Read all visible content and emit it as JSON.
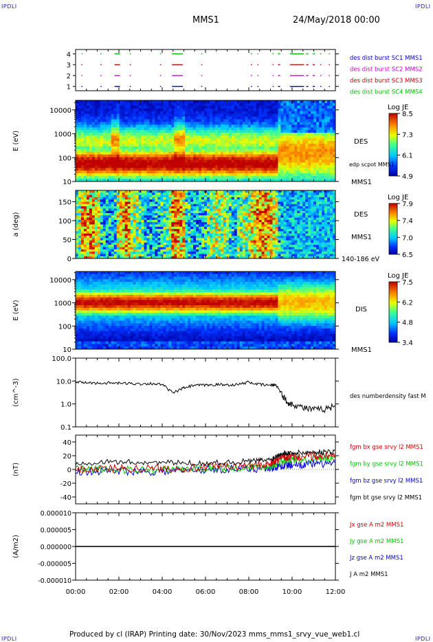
{
  "header": {
    "corner_tl": "IPDLI",
    "corner_tr": "IPDLI",
    "spacecraft": "MMS1",
    "datetime": "24/May/2018 00:00"
  },
  "footer": {
    "text": "Produced by cl (IRAP)   Printing date: 30/Nov/2023   mms_mms1_srvy_vue_web1.cl",
    "corner_bl": "IPDLI",
    "corner_br": "IPDLI"
  },
  "time_axis": {
    "ticks": [
      "00:00",
      "02:00",
      "04:00",
      "06:00",
      "08:00",
      "10:00",
      "12:00"
    ]
  },
  "chart_data": [
    {
      "type": "scatter",
      "panel": "burst",
      "yticks": [
        "1",
        "2",
        "3",
        "4"
      ],
      "ylim": [
        0.6,
        4.4
      ],
      "legend": [
        {
          "label": "des dist burst SC1 MMS1",
          "color": "#0000d0"
        },
        {
          "label": "des dist burst SC2 MMS2",
          "color": "#d000d0"
        },
        {
          "label": "des dist burst SC3 MMS3",
          "color": "#d00000"
        },
        {
          "label": "des dist burst SC4 MMS4",
          "color": "#00c000"
        }
      ],
      "intervals_hours": [
        [
          0.27,
          0.31
        ],
        [
          1.15,
          1.2
        ],
        [
          1.8,
          2.05
        ],
        [
          2.5,
          2.55
        ],
        [
          3.9,
          3.95
        ],
        [
          4.45,
          4.95
        ],
        [
          5.8,
          5.85
        ],
        [
          8.1,
          8.15
        ],
        [
          8.4,
          8.45
        ],
        [
          9.1,
          9.15
        ],
        [
          9.35,
          9.45
        ],
        [
          9.9,
          10.55
        ],
        [
          10.65,
          10.75
        ],
        [
          10.95,
          11.05
        ],
        [
          11.3,
          11.35
        ],
        [
          11.7,
          11.75
        ]
      ]
    },
    {
      "type": "heatmap",
      "panel": "des-energy",
      "ylabel": "E (eV)",
      "yticks": [
        "10",
        "100",
        "1000",
        "10000"
      ],
      "ylim_log10": [
        1,
        4.4
      ],
      "instrument": "DES",
      "overlay_label": "edp scpot MMS1",
      "bottom_label": "MMS1",
      "colorbar": {
        "title": "Log JE",
        "ticks": [
          "8.5",
          "7.3",
          "6.1",
          "4.9"
        ],
        "range": [
          4.9,
          8.5
        ]
      }
    },
    {
      "type": "heatmap",
      "panel": "des-pitch",
      "ylabel": "a (deg)",
      "yticks": [
        "0",
        "50",
        "100",
        "150"
      ],
      "ylim": [
        0,
        180
      ],
      "instrument": "DES",
      "spacecraft_label": "MMS1",
      "energy_range": "140-186 eV",
      "colorbar": {
        "title": "Log JE",
        "ticks": [
          "7.9",
          "7.4",
          "7.0",
          "6.5"
        ],
        "range": [
          6.5,
          7.9
        ]
      }
    },
    {
      "type": "heatmap",
      "panel": "dis-energy",
      "ylabel": "E (eV)",
      "yticks": [
        "10",
        "100",
        "1000",
        "10000"
      ],
      "ylim_log10": [
        1,
        4.35
      ],
      "instrument": "DIS",
      "bottom_label": "MMS1",
      "colorbar": {
        "title": "Log JE",
        "ticks": [
          "7.5",
          "6.2",
          "4.8",
          "3.4"
        ],
        "range": [
          3.4,
          7.5
        ]
      }
    },
    {
      "type": "line",
      "panel": "density",
      "ylabel": "(cm^-3)",
      "yticks": [
        "0.1",
        "1.0",
        "10.0",
        "100.0"
      ],
      "ylim_log10": [
        -1,
        2
      ],
      "series": [
        {
          "name": "des numberdensity fast M",
          "color": "#000000"
        }
      ],
      "x_hours": [
        0,
        0.5,
        1,
        1.5,
        2,
        2.5,
        3,
        3.5,
        4,
        4.5,
        5,
        5.5,
        6,
        6.5,
        7,
        7.5,
        8,
        8.5,
        9,
        9.25,
        9.5,
        9.75,
        10,
        10.5,
        11,
        11.5,
        12
      ],
      "values": [
        9,
        8.5,
        8,
        8.2,
        8,
        7.8,
        7.5,
        7.8,
        7,
        3,
        5,
        6.5,
        6.5,
        7,
        6.8,
        7,
        9,
        7,
        6.5,
        7,
        3,
        1.2,
        1.0,
        0.7,
        0.55,
        0.6,
        0.8
      ]
    },
    {
      "type": "line",
      "panel": "fgm",
      "ylabel": "(nT)",
      "yticks": [
        "-40",
        "-20",
        "0",
        "20",
        "40"
      ],
      "ylim": [
        -50,
        50
      ],
      "series": [
        {
          "name": "fgm bx gse srvy l2 MMS1",
          "color": "#d00000",
          "x_hours": [
            0,
            2,
            4,
            6,
            8,
            9,
            9.5,
            10,
            11,
            12
          ],
          "values": [
            0,
            2,
            1,
            3,
            5,
            8,
            18,
            18,
            19,
            20
          ]
        },
        {
          "name": "fgm by gse srvy l2 MMS1",
          "color": "#00c000",
          "x_hours": [
            0,
            2,
            4,
            6,
            8,
            9,
            9.5,
            10,
            11,
            12
          ],
          "values": [
            0,
            0,
            -1,
            2,
            3,
            5,
            12,
            14,
            15,
            16
          ]
        },
        {
          "name": "fgm bz gse srvy l2 MMS1",
          "color": "#0000d0",
          "x_hours": [
            0,
            2,
            4,
            6,
            8,
            9,
            9.5,
            10,
            11,
            12
          ],
          "values": [
            -3,
            -2,
            -3,
            0,
            1,
            2,
            5,
            7,
            8,
            9
          ]
        },
        {
          "name": "fgm bt gse srvy l2 MMS1",
          "color": "#000000",
          "x_hours": [
            0,
            2,
            4,
            6,
            8,
            9,
            9.5,
            10,
            11,
            12
          ],
          "values": [
            10,
            11,
            10,
            9,
            12,
            14,
            24,
            24,
            25,
            26
          ]
        }
      ]
    },
    {
      "type": "line",
      "panel": "current",
      "ylabel": "(A/m2)",
      "yticks": [
        "-0.000010",
        "-0.000005",
        "0.000000",
        "0.000005",
        "0.000010"
      ],
      "ylim": [
        -1e-05,
        1e-05
      ],
      "series": [
        {
          "name": "Jx gse A m2 MMS1",
          "color": "#d00000",
          "x_hours": [
            0,
            12
          ],
          "values": [
            0,
            0
          ]
        },
        {
          "name": "Jy gse A m2 MMS1",
          "color": "#00c000",
          "x_hours": [
            0,
            12
          ],
          "values": [
            0,
            0
          ]
        },
        {
          "name": "Jz gse A m2 MMS1",
          "color": "#0000d0",
          "x_hours": [
            0,
            12
          ],
          "values": [
            0,
            0
          ]
        },
        {
          "name": "J A m2 MMS1",
          "color": "#000000",
          "x_hours": [
            0,
            12
          ],
          "values": [
            0,
            0
          ]
        }
      ]
    }
  ]
}
